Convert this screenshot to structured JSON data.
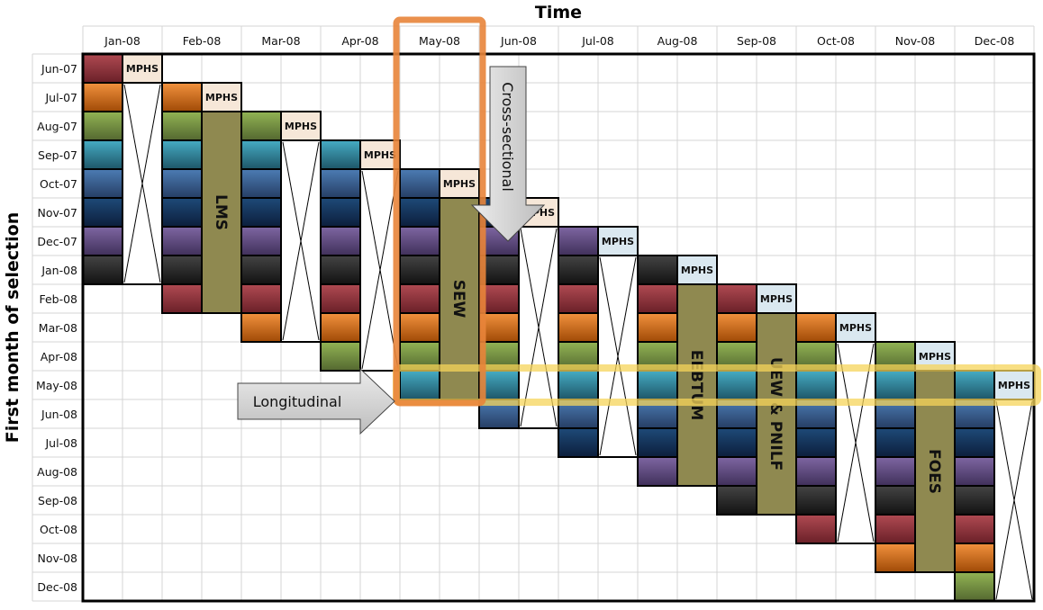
{
  "title_x": "Time",
  "title_y": "First month of selection",
  "columns": [
    "Jan-08",
    "Feb-08",
    "Mar-08",
    "Apr-08",
    "May-08",
    "Jun-08",
    "Jul-08",
    "Aug-08",
    "Sep-08",
    "Oct-08",
    "Nov-08",
    "Dec-08"
  ],
  "rows": [
    "Jun-07",
    "Jul-07",
    "Aug-07",
    "Sep-07",
    "Oct-07",
    "Nov-07",
    "Dec-07",
    "Jan-08",
    "Feb-08",
    "Mar-08",
    "Apr-08",
    "May-08",
    "Jun-08",
    "Jul-08",
    "Aug-08",
    "Sep-08",
    "Oct-08",
    "Nov-08",
    "Dec-08"
  ],
  "mphs_label": "MPHS",
  "waves": [
    {
      "column": "Jan-08",
      "first_row": "Jun-07",
      "survey": null,
      "mphs_color": "#f6e7d8"
    },
    {
      "column": "Feb-08",
      "first_row": "Jul-07",
      "survey": "LMS",
      "mphs_color": "#f6e7d8"
    },
    {
      "column": "Mar-08",
      "first_row": "Aug-07",
      "survey": null,
      "mphs_color": "#f6e7d8"
    },
    {
      "column": "Apr-08",
      "first_row": "Sep-07",
      "survey": null,
      "mphs_color": "#f6e7d8"
    },
    {
      "column": "May-08",
      "first_row": "Oct-07",
      "survey": "SEW",
      "mphs_color": "#f6e7d8"
    },
    {
      "column": "Jun-08",
      "first_row": "Nov-07",
      "survey": null,
      "mphs_color": "#f6e7d8"
    },
    {
      "column": "Jul-08",
      "first_row": "Dec-07",
      "survey": null,
      "mphs_color": "#dae8f0"
    },
    {
      "column": "Aug-08",
      "first_row": "Jan-08",
      "survey": "EEBTUM",
      "mphs_color": "#dae8f0"
    },
    {
      "column": "Sep-08",
      "first_row": "Feb-08",
      "survey": "UEW & PNILF",
      "mphs_color": "#dae8f0"
    },
    {
      "column": "Oct-08",
      "first_row": "Mar-08",
      "survey": null,
      "mphs_color": "#dae8f0"
    },
    {
      "column": "Nov-08",
      "first_row": "Apr-08",
      "survey": "FOES",
      "mphs_color": "#dae8f0"
    },
    {
      "column": "Dec-08",
      "first_row": "May-08",
      "survey": null,
      "mphs_color": "#dae8f0"
    }
  ],
  "rotation_colors": [
    [
      "#b04a52",
      "#6a2028"
    ],
    [
      "#f2923e",
      "#a04a06"
    ],
    [
      "#92b454",
      "#546830"
    ],
    [
      "#46acc4",
      "#1e5668"
    ],
    [
      "#4c7cb4",
      "#263e64"
    ],
    [
      "#1e4a78",
      "#0c1e3c"
    ],
    [
      "#7e66a2",
      "#40305a"
    ],
    [
      "#444444",
      "#121212"
    ]
  ],
  "survey_box_color": "#8f8950",
  "highlights": {
    "cross_sectional": {
      "label": "Cross-sectional",
      "column": "May-08",
      "color": "#e8843a"
    },
    "longitudinal": {
      "label": "Longitudinal",
      "row": "May-08",
      "color": "#f5d45a"
    }
  }
}
